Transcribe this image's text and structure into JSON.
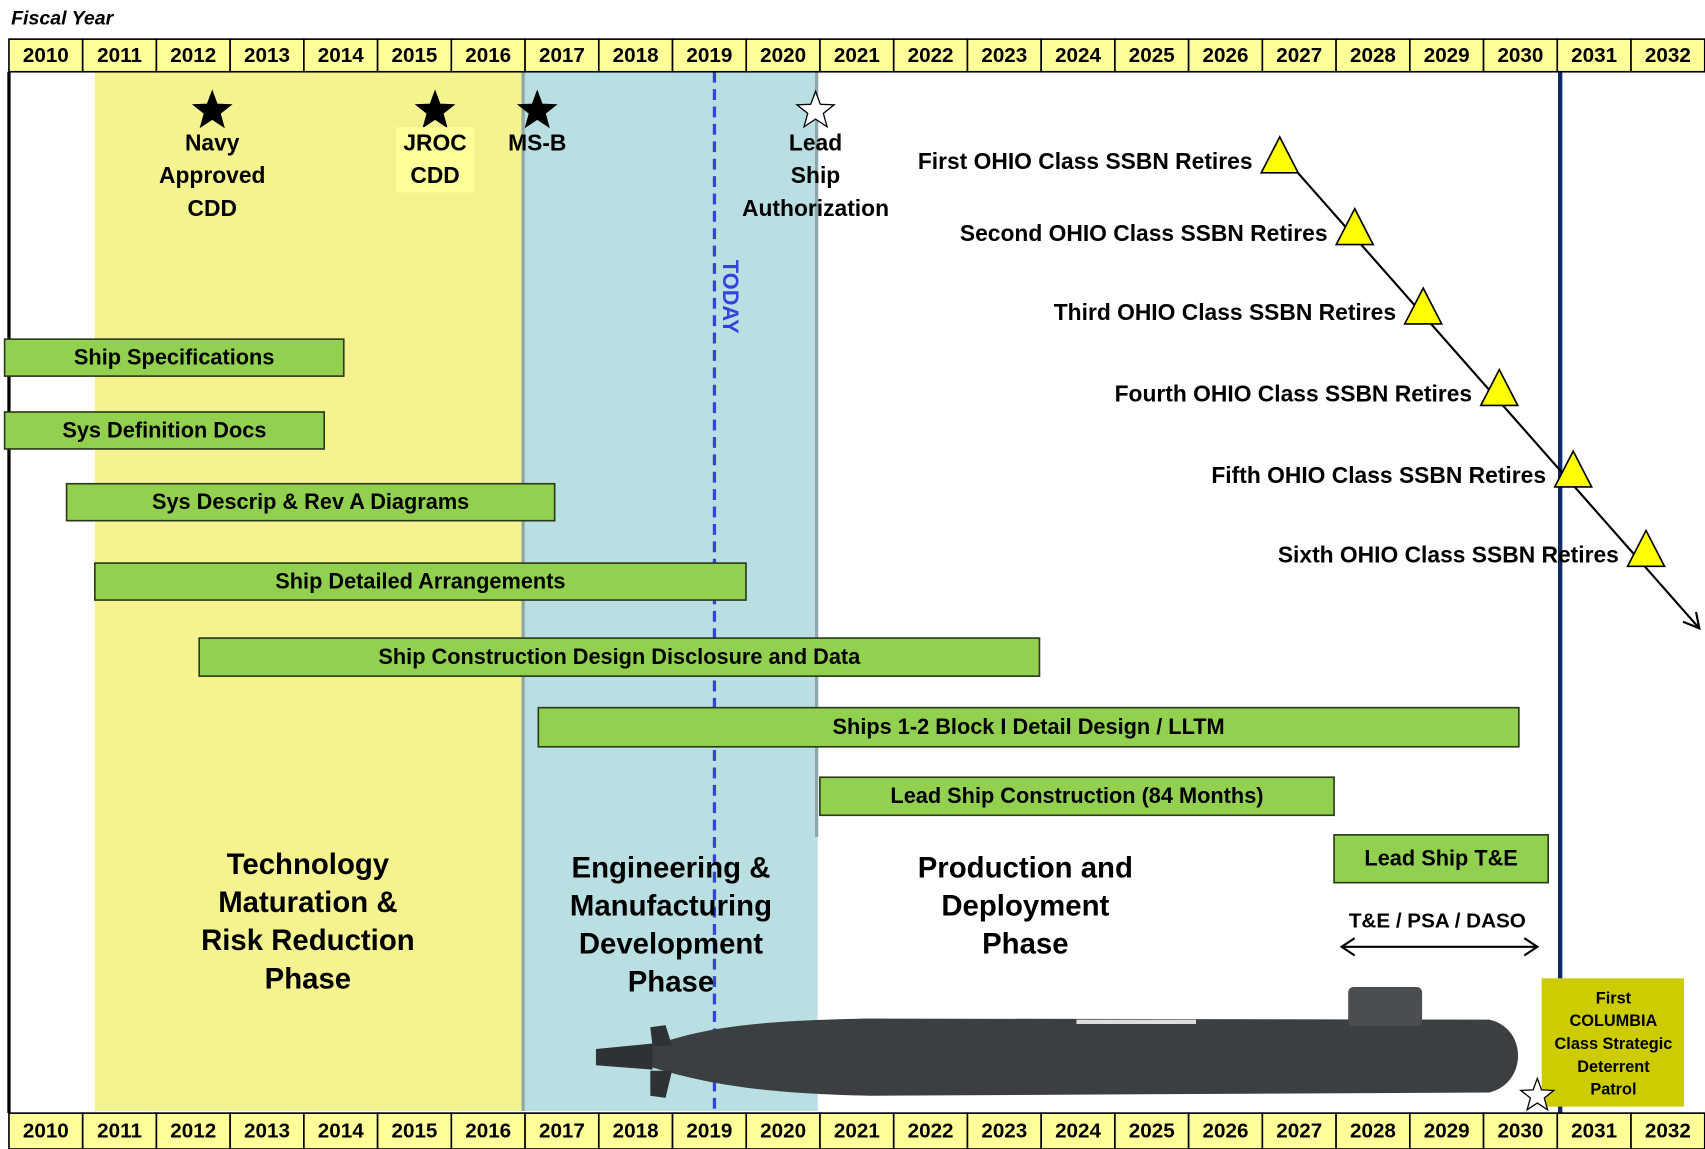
{
  "header": {
    "title": "Fiscal Year"
  },
  "years": [
    2010,
    2011,
    2012,
    2013,
    2014,
    2015,
    2016,
    2017,
    2018,
    2019,
    2020,
    2021,
    2022,
    2023,
    2024,
    2025,
    2026,
    2027,
    2028,
    2029,
    2030,
    2031,
    2032
  ],
  "milestones": [
    {
      "label": [
        "Navy",
        "Approved",
        "CDD"
      ]
    },
    {
      "label": [
        "JROC",
        "CDD"
      ]
    },
    {
      "label": [
        "MS-B"
      ]
    },
    {
      "label": [
        "Lead",
        "Ship",
        "Authorization"
      ]
    }
  ],
  "today": "TODAY",
  "bars": [
    {
      "label": "Ship Specifications"
    },
    {
      "label": "Sys Definition Docs"
    },
    {
      "label": "Sys Descrip & Rev A Diagrams"
    },
    {
      "label": "Ship Detailed Arrangements"
    },
    {
      "label": "Ship Construction Design Disclosure and Data"
    },
    {
      "label": "Ships 1-2 Block I Detail Design / LLTM"
    },
    {
      "label": "Lead Ship Construction (84 Months)"
    },
    {
      "label": "Lead Ship T&E"
    }
  ],
  "retirements": [
    {
      "label": "First OHIO Class SSBN Retires"
    },
    {
      "label": "Second OHIO Class SSBN Retires"
    },
    {
      "label": "Third OHIO Class SSBN Retires"
    },
    {
      "label": "Fourth OHIO Class SSBN Retires"
    },
    {
      "label": "Fifth OHIO Class SSBN Retires"
    },
    {
      "label": "Sixth OHIO Class SSBN Retires"
    }
  ],
  "phases": [
    {
      "label": [
        "Technology",
        "Maturation &",
        "Risk Reduction",
        "Phase"
      ]
    },
    {
      "label": [
        "Engineering &",
        "Manufacturing",
        "Development",
        "Phase"
      ]
    },
    {
      "label": [
        "Production and",
        "Deployment",
        "Phase"
      ]
    }
  ],
  "test_label": "T&E / PSA / DASO",
  "first_patrol": [
    "First",
    "COLUMBIA",
    "Class Strategic",
    "Deterrent",
    "Patrol"
  ]
}
